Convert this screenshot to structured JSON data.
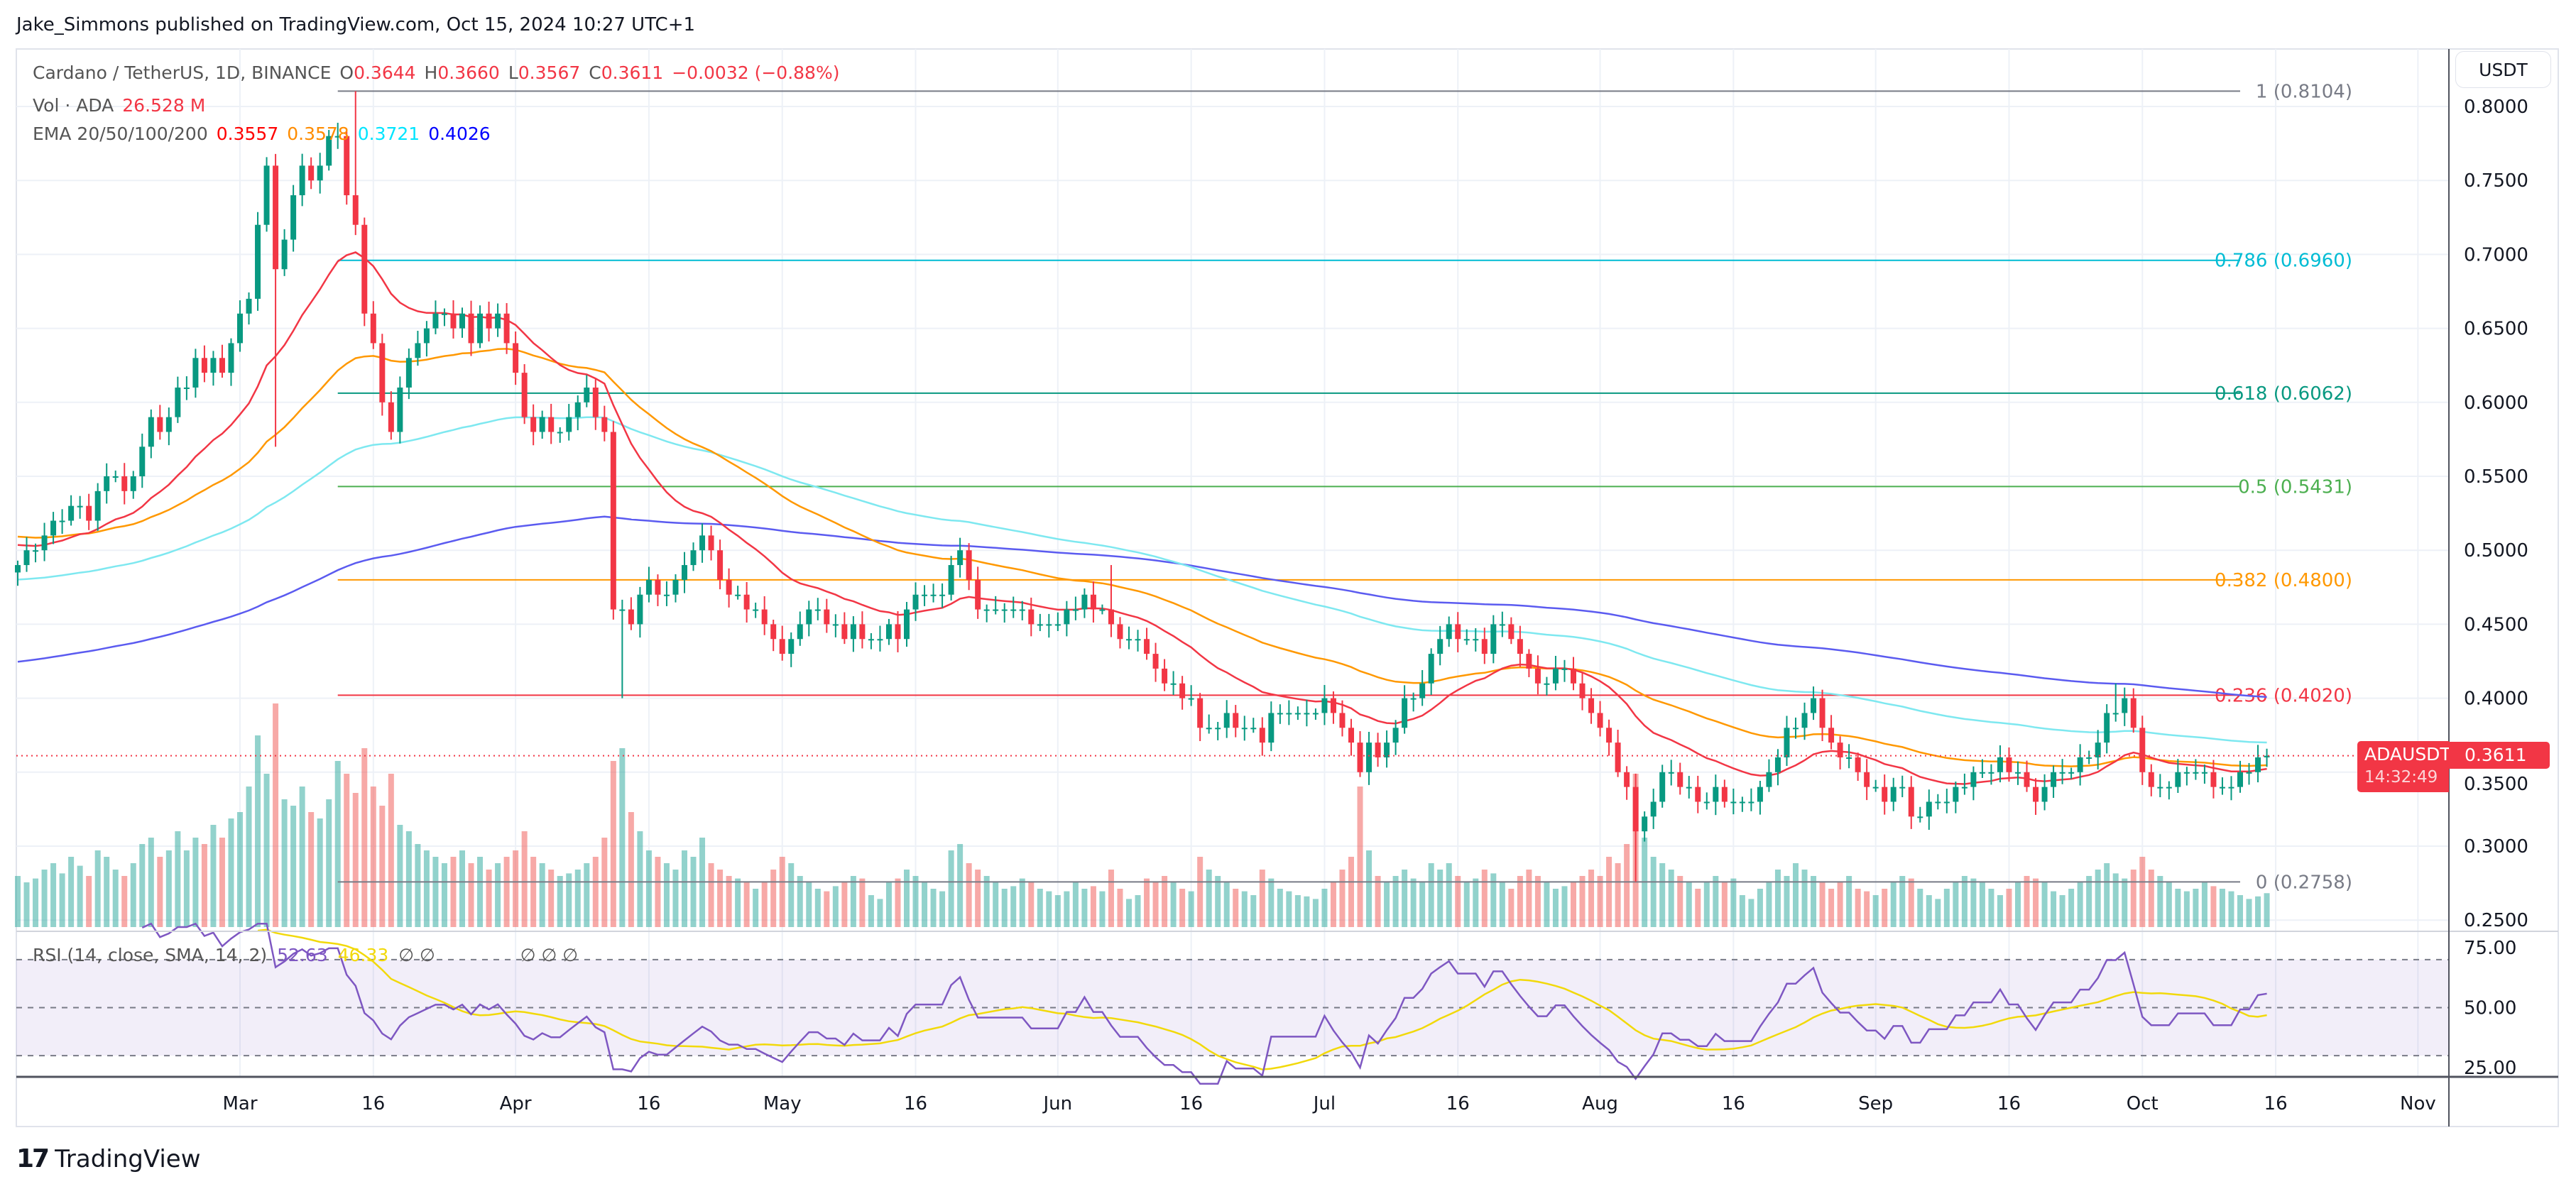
{
  "header": {
    "author_line": "Jake_Simmons published on TradingView.com, Oct 15, 2024 10:27 UTC+1"
  },
  "legend": {
    "symbol": "Cardano / TetherUS, 1D, BINANCE",
    "open_label": "O",
    "open": "0.3644",
    "high_label": "H",
    "high": "0.3660",
    "low_label": "L",
    "low": "0.3567",
    "close_label": "C",
    "close": "0.3611",
    "change": "−0.0032 (−0.88%)",
    "volume_label": "Vol · ADA",
    "volume": "26.528 M",
    "ema_label": "EMA 20/50/100/200",
    "ema_values": [
      "0.3557",
      "0.3578",
      "0.3721",
      "0.4026"
    ]
  },
  "rsi_legend": {
    "label": "RSI (14, close, SMA, 14, 2)",
    "rsi": "52.63",
    "sma": "46.33",
    "na_a": "∅  ∅",
    "na_b": "∅  ∅  ∅"
  },
  "price_axis": {
    "currency_button": "USDT"
  },
  "last_price": {
    "symbol": "ADAUSDT",
    "price": "0.3611",
    "countdown": "14:32:49"
  },
  "footer": {
    "brand": "TradingView",
    "logo_mark": "17"
  },
  "colors": {
    "up": "#089981",
    "down": "#f23645",
    "ema20": "#f23645",
    "ema50": "#ff9800",
    "ema100": "#7ee8f0",
    "ema200": "#5b5bf0",
    "rsi": "#7e57c2",
    "rsi_sma": "#f2d90a"
  },
  "chart_data": {
    "type": "candlestick",
    "symbol": "ADAUSDT",
    "interval": "1D",
    "grid": true,
    "price_ticks": [
      "0.8000",
      "0.7500",
      "0.7000",
      "0.6500",
      "0.6000",
      "0.5500",
      "0.5000",
      "0.4500",
      "0.4000",
      "0.3500",
      "0.3000",
      "0.2500"
    ],
    "rsi_ticks": [
      "75.00",
      "50.00",
      "25.00"
    ],
    "time_ticks": [
      {
        "label": "Mar",
        "date": "2024-03-01"
      },
      {
        "label": "16",
        "date": "2024-03-16"
      },
      {
        "label": "Apr",
        "date": "2024-04-01"
      },
      {
        "label": "16",
        "date": "2024-04-16"
      },
      {
        "label": "May",
        "date": "2024-05-01"
      },
      {
        "label": "16",
        "date": "2024-05-16"
      },
      {
        "label": "Jun",
        "date": "2024-06-01"
      },
      {
        "label": "16",
        "date": "2024-06-16"
      },
      {
        "label": "Jul",
        "date": "2024-07-01"
      },
      {
        "label": "16",
        "date": "2024-07-16"
      },
      {
        "label": "Aug",
        "date": "2024-08-01"
      },
      {
        "label": "16",
        "date": "2024-08-16"
      },
      {
        "label": "Sep",
        "date": "2024-09-01"
      },
      {
        "label": "16",
        "date": "2024-09-16"
      },
      {
        "label": "Oct",
        "date": "2024-10-01"
      },
      {
        "label": "16",
        "date": "2024-10-16"
      },
      {
        "label": "Nov",
        "date": "2024-11-01"
      }
    ],
    "fib_levels": [
      {
        "label": "1 (0.8104)",
        "price": 0.8104,
        "color": "#787b86"
      },
      {
        "label": "0.786 (0.6960)",
        "price": 0.696,
        "color": "#00bcd4"
      },
      {
        "label": "0.618 (0.6062)",
        "price": 0.6062,
        "color": "#089981"
      },
      {
        "label": "0.5 (0.5431)",
        "price": 0.5431,
        "color": "#4caf50"
      },
      {
        "label": "0.382 (0.4800)",
        "price": 0.48,
        "color": "#ff9800"
      },
      {
        "label": "0.236 (0.4020)",
        "price": 0.402,
        "color": "#f23645"
      },
      {
        "label": "0 (0.2758)",
        "price": 0.2758,
        "color": "#787b86"
      }
    ],
    "fib_start_date": "2024-03-12",
    "fib_end_date": "2024-10-12",
    "ema_start": {
      "ema20": 0.505,
      "ema50": 0.51,
      "ema100": 0.48,
      "ema200": 0.424
    },
    "wicks": [
      {
        "date": "2024-03-05",
        "low": 0.57
      },
      {
        "date": "2024-03-14",
        "high": 0.8104
      },
      {
        "date": "2024-04-13",
        "low": 0.4
      },
      {
        "date": "2024-06-07",
        "high": 0.49
      },
      {
        "date": "2024-08-05",
        "low": 0.2758
      },
      {
        "date": "2024-09-28",
        "high": 0.41
      }
    ],
    "candles_by_month": [
      {
        "month": "2024-02",
        "first_day": 5,
        "close": [
          0.49,
          0.5,
          0.5,
          0.51,
          0.52,
          0.52,
          0.53,
          0.53,
          0.52,
          0.54,
          0.55,
          0.55,
          0.54,
          0.55,
          0.57,
          0.59,
          0.58,
          0.59,
          0.61,
          0.61,
          0.63,
          0.62,
          0.63,
          0.62,
          0.64
        ],
        "volume": [
          40,
          35,
          38,
          45,
          50,
          42,
          55,
          48,
          40,
          60,
          55,
          45,
          40,
          50,
          65,
          70,
          55,
          60,
          75,
          60,
          70,
          65,
          80,
          70,
          85
        ]
      },
      {
        "month": "2024-03",
        "first_day": 1,
        "close": [
          0.66,
          0.67,
          0.72,
          0.76,
          0.69,
          0.71,
          0.74,
          0.76,
          0.75,
          0.76,
          0.78,
          0.78,
          0.74,
          0.72,
          0.66,
          0.64,
          0.6,
          0.58,
          0.61,
          0.63,
          0.64,
          0.65,
          0.66,
          0.66,
          0.65,
          0.66,
          0.64,
          0.66,
          0.65,
          0.66,
          0.64
        ],
        "volume": [
          90,
          110,
          150,
          120,
          175,
          100,
          95,
          110,
          90,
          85,
          100,
          130,
          120,
          105,
          140,
          110,
          95,
          120,
          80,
          75,
          65,
          60,
          55,
          50,
          55,
          60,
          50,
          55,
          45,
          50,
          55
        ]
      },
      {
        "month": "2024-04",
        "first_day": 1,
        "close": [
          0.62,
          0.59,
          0.58,
          0.59,
          0.58,
          0.58,
          0.59,
          0.6,
          0.61,
          0.59,
          0.58,
          0.46,
          0.46,
          0.45,
          0.47,
          0.48,
          0.47,
          0.47,
          0.48,
          0.49,
          0.5,
          0.51,
          0.5,
          0.48,
          0.47,
          0.47,
          0.46,
          0.46,
          0.45,
          0.44
        ],
        "volume": [
          60,
          75,
          55,
          50,
          45,
          40,
          42,
          45,
          50,
          55,
          70,
          130,
          140,
          90,
          75,
          60,
          55,
          50,
          45,
          60,
          55,
          70,
          50,
          45,
          40,
          38,
          35,
          30,
          35,
          45
        ]
      },
      {
        "month": "2024-05",
        "first_day": 1,
        "close": [
          0.43,
          0.44,
          0.45,
          0.46,
          0.46,
          0.45,
          0.45,
          0.44,
          0.45,
          0.44,
          0.44,
          0.44,
          0.45,
          0.44,
          0.46,
          0.47,
          0.47,
          0.47,
          0.47,
          0.49,
          0.5,
          0.48,
          0.46,
          0.46,
          0.46,
          0.46,
          0.46,
          0.46,
          0.45,
          0.45,
          0.45
        ],
        "volume": [
          55,
          50,
          40,
          35,
          30,
          28,
          32,
          35,
          40,
          38,
          25,
          22,
          35,
          38,
          45,
          40,
          35,
          30,
          28,
          60,
          65,
          50,
          45,
          40,
          35,
          30,
          32,
          38,
          35,
          30,
          28
        ]
      },
      {
        "month": "2024-06",
        "first_day": 1,
        "close": [
          0.45,
          0.46,
          0.46,
          0.47,
          0.46,
          0.46,
          0.45,
          0.44,
          0.44,
          0.44,
          0.43,
          0.42,
          0.41,
          0.41,
          0.4,
          0.4,
          0.38,
          0.38,
          0.38,
          0.39,
          0.38,
          0.38,
          0.38,
          0.37,
          0.39,
          0.39,
          0.39,
          0.39,
          0.39,
          0.39
        ],
        "volume": [
          25,
          28,
          35,
          30,
          32,
          28,
          45,
          30,
          22,
          25,
          38,
          35,
          40,
          35,
          30,
          28,
          55,
          45,
          40,
          35,
          30,
          28,
          25,
          45,
          38,
          30,
          28,
          25,
          24,
          22
        ]
      },
      {
        "month": "2024-07",
        "first_day": 1,
        "close": [
          0.4,
          0.39,
          0.38,
          0.37,
          0.35,
          0.37,
          0.36,
          0.37,
          0.38,
          0.4,
          0.4,
          0.41,
          0.43,
          0.44,
          0.45,
          0.44,
          0.44,
          0.44,
          0.43,
          0.45,
          0.45,
          0.44,
          0.43,
          0.42,
          0.41,
          0.41,
          0.42,
          0.42,
          0.41,
          0.4,
          0.39
        ],
        "volume": [
          30,
          35,
          45,
          55,
          110,
          60,
          40,
          35,
          40,
          45,
          38,
          35,
          50,
          45,
          50,
          40,
          35,
          38,
          45,
          42,
          35,
          30,
          40,
          45,
          40,
          35,
          30,
          32,
          35,
          40,
          45
        ]
      },
      {
        "month": "2024-08",
        "first_day": 1,
        "close": [
          0.38,
          0.37,
          0.35,
          0.34,
          0.31,
          0.32,
          0.33,
          0.35,
          0.35,
          0.34,
          0.34,
          0.33,
          0.33,
          0.34,
          0.33,
          0.33,
          0.33,
          0.33,
          0.34,
          0.35,
          0.36,
          0.38,
          0.38,
          0.39,
          0.4,
          0.38,
          0.37,
          0.36,
          0.36,
          0.35,
          0.34
        ],
        "volume": [
          40,
          55,
          50,
          65,
          120,
          70,
          55,
          50,
          45,
          40,
          35,
          30,
          35,
          40,
          35,
          38,
          25,
          22,
          30,
          35,
          45,
          40,
          50,
          45,
          40,
          35,
          30,
          35,
          40,
          30,
          28
        ]
      },
      {
        "month": "2024-09",
        "first_day": 1,
        "close": [
          0.34,
          0.33,
          0.34,
          0.34,
          0.32,
          0.32,
          0.33,
          0.33,
          0.33,
          0.34,
          0.34,
          0.35,
          0.35,
          0.35,
          0.36,
          0.35,
          0.35,
          0.34,
          0.33,
          0.34,
          0.35,
          0.35,
          0.35,
          0.36,
          0.36,
          0.37,
          0.39,
          0.39,
          0.4,
          0.38
        ],
        "volume": [
          25,
          30,
          35,
          40,
          38,
          30,
          25,
          22,
          30,
          35,
          40,
          38,
          35,
          30,
          25,
          30,
          35,
          40,
          38,
          35,
          28,
          25,
          30,
          35,
          40,
          45,
          50,
          42,
          38,
          45
        ]
      },
      {
        "month": "2024-10",
        "first_day": 1,
        "close": [
          0.35,
          0.34,
          0.34,
          0.34,
          0.35,
          0.35,
          0.35,
          0.35,
          0.34,
          0.34,
          0.34,
          0.35,
          0.35,
          0.36,
          0.3611
        ],
        "volume": [
          55,
          45,
          40,
          35,
          30,
          28,
          30,
          35,
          32,
          30,
          28,
          25,
          22,
          24,
          26.528
        ]
      }
    ]
  }
}
